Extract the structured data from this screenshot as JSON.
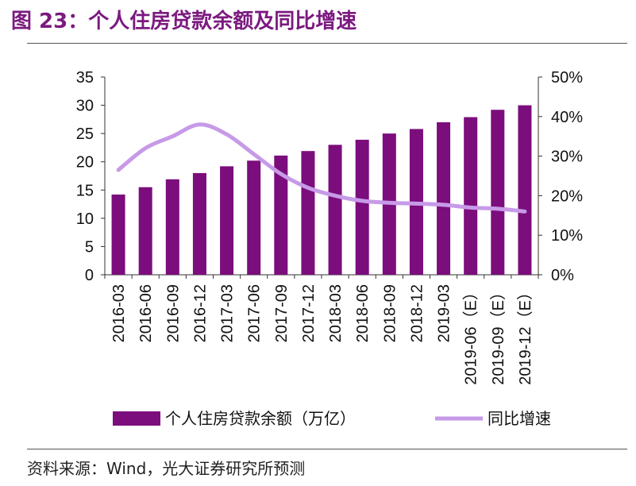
{
  "figure": {
    "title": "图 23：个人住房贷款余额及同比增速",
    "source": "资料来源：Wind，光大证券研究所预测"
  },
  "chart_data": {
    "type": "bar",
    "categories": [
      "2016-03",
      "2016-06",
      "2016-09",
      "2016-12",
      "2017-03",
      "2017-06",
      "2017-09",
      "2017-12",
      "2018-03",
      "2018-06",
      "2018-09",
      "2018-12",
      "2019-03",
      "2019-06（E）",
      "2019-09（E）",
      "2019-12（E）"
    ],
    "series": [
      {
        "name": "个人住房贷款余额（万亿）",
        "type": "bar",
        "axis": "left",
        "color": "#7b0d7c",
        "values": [
          14.2,
          15.5,
          16.9,
          18.0,
          19.2,
          20.2,
          21.1,
          21.9,
          23.0,
          23.9,
          25.0,
          25.8,
          27.0,
          27.9,
          29.2,
          30.0
        ]
      },
      {
        "name": "同比增速",
        "type": "line",
        "axis": "right",
        "color": "#c79ae8",
        "values": [
          26.5,
          32.0,
          35.0,
          38.0,
          35.5,
          30.5,
          25.5,
          22.0,
          20.0,
          18.7,
          18.2,
          18.0,
          17.7,
          17.0,
          16.7,
          16.0
        ]
      }
    ],
    "y_left": {
      "min": 0,
      "max": 35,
      "ticks": [
        "0",
        "5",
        "10",
        "15",
        "20",
        "25",
        "30",
        "35"
      ]
    },
    "y_right": {
      "min": 0,
      "max": 50,
      "ticks": [
        "0%",
        "10%",
        "20%",
        "30%",
        "40%",
        "50%"
      ]
    },
    "grid": false,
    "legend_position": "bottom"
  }
}
